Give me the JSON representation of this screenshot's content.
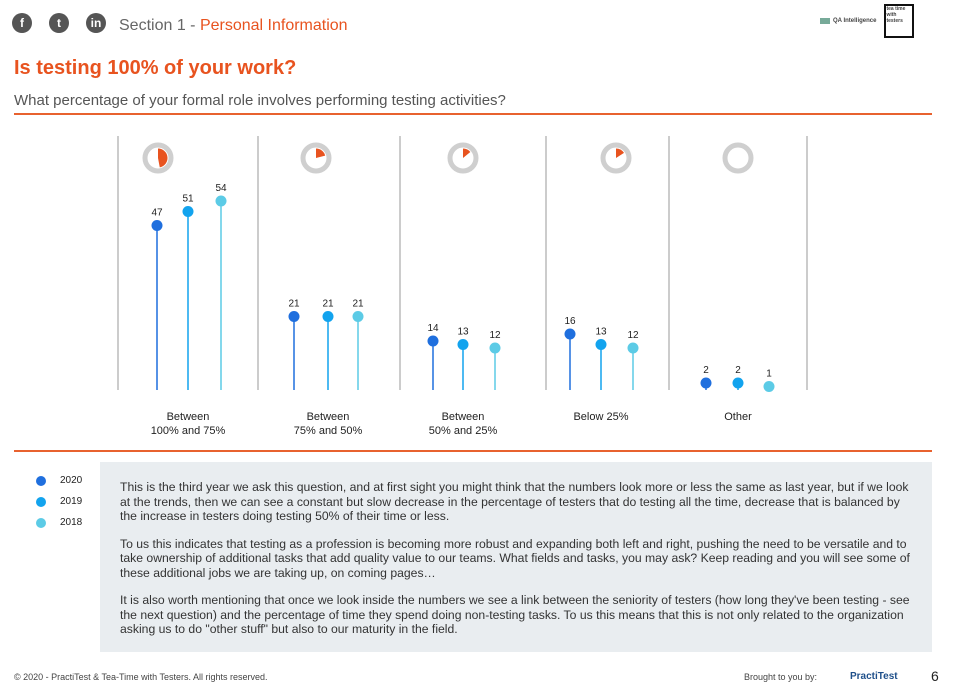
{
  "header": {
    "section_prefix": "Section 1 - ",
    "section_name": "Personal Information",
    "title": "Is testing 100% of your work?",
    "subtitle": "What percentage of your formal role involves performing testing activities?",
    "logo_qa": "QA Intelligence",
    "logo_tea": "tea time with testers"
  },
  "social": [
    {
      "name": "facebook",
      "glyph": "f"
    },
    {
      "name": "twitter",
      "glyph": "t"
    },
    {
      "name": "linkedin",
      "glyph": "in"
    }
  ],
  "colors": {
    "accent": "#e8531f",
    "y2020": "#1f6fde",
    "y2019": "#12a3ee",
    "y2018": "#5ccbe6",
    "ring": "#cfcfcf"
  },
  "chart_data": {
    "type": "lollipop",
    "categories": [
      "Between\n100% and 75%",
      "Between\n75% and 50%",
      "Between\n50% and 25%",
      "Below 25%",
      "Other"
    ],
    "series": [
      {
        "name": "2020",
        "values": [
          47,
          21,
          14,
          16,
          2
        ]
      },
      {
        "name": "2019",
        "values": [
          51,
          21,
          13,
          13,
          2
        ]
      },
      {
        "name": "2018",
        "values": [
          54,
          21,
          12,
          12,
          1
        ]
      }
    ],
    "pie_values_2020": [
      47,
      21,
      14,
      16,
      2
    ],
    "ylim": [
      0,
      60
    ],
    "legend": "left-bottom"
  },
  "legend": [
    "2020",
    "2019",
    "2018"
  ],
  "text": [
    "This is the third year we ask this question, and at first sight you might think that the numbers look more or less the same as last year, but if we look at the trends, then we can see a constant but slow decrease in the percentage of testers that do testing all the time, decrease that is balanced by the increase in testers doing testing 50% of their time or less.",
    "To us this indicates that testing as a profession is becoming more robust and expanding both left and right, pushing the need to be versatile and to take ownership of additional tasks that add quality value to our teams.  What fields and tasks, you may ask?  Keep reading and you will see some of these additional jobs we are taking up,  on coming pages…",
    "It is also worth mentioning that once we look inside the numbers we see a link between the seniority of testers (how long they've been testing - see the next question) and the percentage of time they spend doing non-testing tasks.  To us this means that this is not only related to the organization asking us to do \"other stuff\" but also to our maturity in the field."
  ],
  "footer": {
    "copyright": "© 2020 - PractiTest & Tea-Time with Testers. All rights reserved.",
    "brought": "Brought to you by:",
    "brand": "PractiTest",
    "page": "6"
  }
}
